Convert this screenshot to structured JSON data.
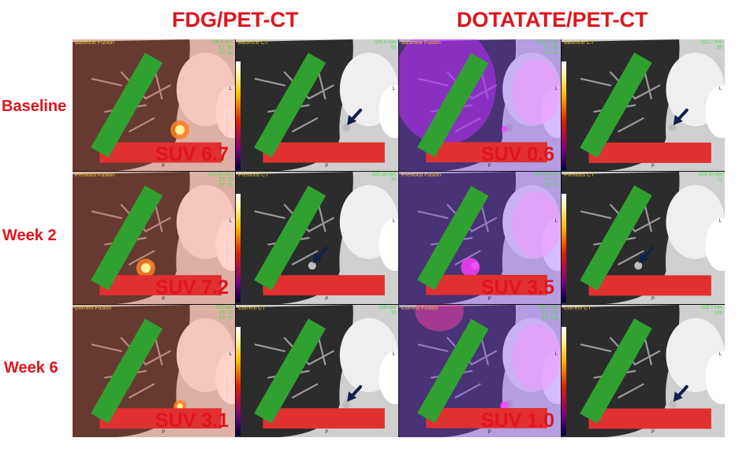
{
  "columns": {
    "fdg": "FDG/PET-CT",
    "dotatate": "DOTATATE/PET-CT"
  },
  "rows": [
    {
      "label": "Baseline",
      "panels": [
        {
          "title": "Baseline Fusion",
          "info": "-100.0 mm\nCT: 50\nPT: 50",
          "suv": "SUV 6.7"
        },
        {
          "title": "Baseline CT",
          "info": "-100.0 mm\n50",
          "suv": ""
        },
        {
          "title": "Baseline Fusion",
          "info": "-122.7 mm\nCT: 50\nPT: 50",
          "suv": "SUV 0.6"
        },
        {
          "title": "Baseline CT",
          "info": "-122.7 mm\n50",
          "suv": ""
        }
      ]
    },
    {
      "label": "Week 2",
      "panels": [
        {
          "title": "Previous Fusion",
          "info": "-220.10 mm\nCT: 70\nPT: 70",
          "suv": "SUV 7.2"
        },
        {
          "title": "Previous CT",
          "info": "-220.10 mm\n70",
          "suv": ""
        },
        {
          "title": "Previous Fusion",
          "info": "-214.10 mm\nCT: 71\nPT: 71",
          "suv": "SUV 3.5"
        },
        {
          "title": "Previous CT",
          "info": "-214.10 mm\n71",
          "suv": ""
        }
      ]
    },
    {
      "label": "Week 6",
      "panels": [
        {
          "title": "Current Fusion",
          "info": "-219 mm\nCT: 70\nPT: 70",
          "suv": "SUV 3.1"
        },
        {
          "title": "Current CT",
          "info": "-219 mm\n70",
          "suv": ""
        },
        {
          "title": "Current Fusion",
          "info": "-225.7 mm\nCT: 100\nPT: 100",
          "suv": "SUV 1.0"
        },
        {
          "title": "Current CT",
          "info": "-225.7 mm\n100",
          "suv": ""
        }
      ]
    }
  ],
  "orientation_marks": {
    "right": "L",
    "bottom": "P"
  },
  "colors": {
    "label_red": "#e0141e",
    "arrow": "#10204a",
    "fdg_tint": "#ff6040",
    "dotatate_tint": "#8040ff"
  }
}
